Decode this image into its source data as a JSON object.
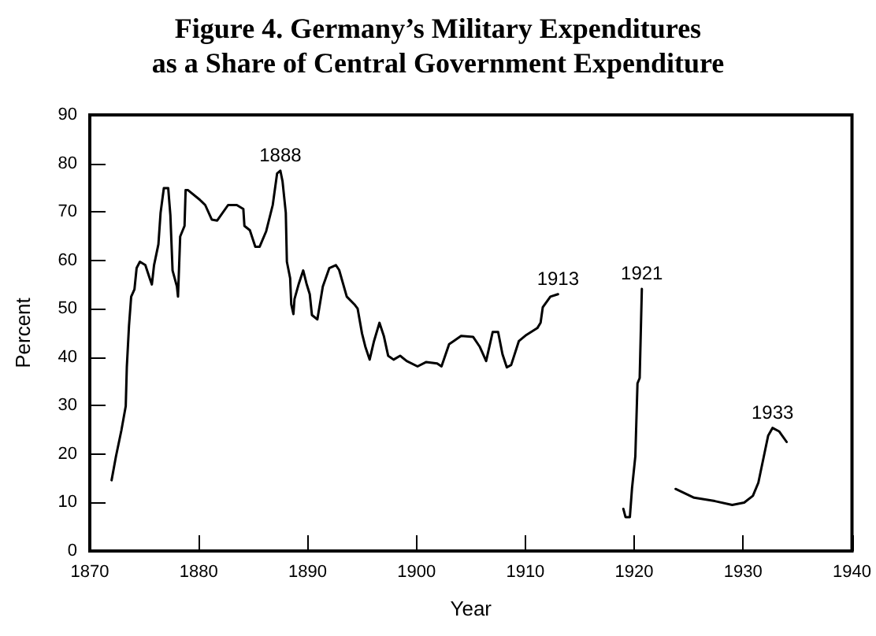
{
  "chart_data": {
    "type": "line",
    "title": "Figure 4. Germany’s Military Expenditures\nas a Share of Central Government Expenditure",
    "xlabel": "Year",
    "ylabel": "Percent",
    "series": [
      {
        "color": "#000000",
        "x": [
          1872.0,
          1872.4,
          1872.9,
          1873.3,
          1873.4,
          1873.6,
          1873.8,
          1874.1,
          1874.3,
          1874.6,
          1875.1,
          1875.5,
          1875.7,
          1875.9,
          1876.3,
          1876.5,
          1876.8,
          1877.2,
          1877.4,
          1877.6,
          1878.0,
          1878.1,
          1878.3,
          1878.7,
          1878.8,
          1879.0,
          1880.1,
          1880.6,
          1881.2,
          1881.7,
          1882.7,
          1883.5,
          1884.1,
          1884.2,
          1884.7,
          1885.2,
          1885.6,
          1886.2,
          1886.8,
          1887.2,
          1887.5,
          1887.7,
          1888.0,
          1888.1,
          1888.4,
          1888.5,
          1888.7,
          1888.8,
          1889.2,
          1889.6,
          1889.9,
          1890.2,
          1890.4,
          1890.9,
          1891.4,
          1892.0,
          1892.6,
          1892.9,
          1893.6,
          1894.3,
          1894.6,
          1895.0,
          1895.3,
          1895.7,
          1896.1,
          1896.6,
          1897.0,
          1897.4,
          1897.9,
          1898.5,
          1899.1,
          1900.1,
          1900.9,
          1901.9,
          1902.3,
          1903.0,
          1903.4,
          1904.1,
          1905.2,
          1905.8,
          1906.4,
          1907.0,
          1907.5,
          1907.9,
          1908.3,
          1908.7,
          1909.4,
          1910.1,
          1911.1,
          1911.4,
          1911.6,
          1912.3,
          1913.0,
          1916.0,
          1919.0,
          1919.2,
          1919.6,
          1919.8,
          1920.1,
          1920.3,
          1920.5,
          1920.7,
          1922.0,
          1923.8,
          1925.5,
          1927.4,
          1929.0,
          1930.1,
          1930.9,
          1931.4,
          1931.9,
          1932.3,
          1932.7,
          1933.3,
          1934.0
        ],
        "values": [
          14.6,
          19.5,
          24.9,
          29.9,
          38,
          46.5,
          52.5,
          54,
          58.4,
          59.7,
          59,
          56.3,
          55,
          59,
          63.3,
          69.8,
          74.9,
          74.9,
          69.3,
          57.9,
          54.6,
          52.5,
          64.9,
          67.1,
          74.5,
          74.5,
          72.5,
          71.4,
          68.4,
          68.2,
          71.4,
          71.4,
          70.6,
          67.1,
          66.2,
          62.8,
          62.8,
          66,
          71.4,
          77.9,
          78.5,
          76.3,
          69.8,
          59.7,
          56.3,
          50.9,
          48.9,
          52,
          55.2,
          57.9,
          55.2,
          53,
          48.7,
          47.8,
          54.6,
          58.4,
          59,
          58,
          52.5,
          50.9,
          50,
          44.9,
          42.2,
          39.5,
          43.3,
          47.1,
          44.4,
          40.3,
          39.5,
          40.3,
          39.2,
          38.1,
          39,
          38.7,
          38.1,
          42.7,
          43.3,
          44.4,
          44.2,
          42.2,
          39.2,
          45.2,
          45.2,
          40.6,
          37.9,
          38.4,
          43.3,
          44.6,
          46,
          47.1,
          50.3,
          52.5,
          53,
          null,
          8.7,
          7,
          7,
          13,
          19.5,
          34.6,
          35.7,
          54.1,
          null,
          12.8,
          11,
          10.3,
          9.5,
          10,
          11.4,
          14.1,
          19.5,
          23.8,
          25.4,
          24.7,
          22.5
        ]
      }
    ],
    "annotations": [
      {
        "text": "1888",
        "x": 1887.5,
        "y": 78.5
      },
      {
        "text": "1913",
        "x": 1913.0,
        "y": 53
      },
      {
        "text": "1921",
        "x": 1920.7,
        "y": 54.1
      },
      {
        "text": "1933",
        "x": 1932.7,
        "y": 25.4
      }
    ],
    "xlim": [
      1870,
      1940
    ],
    "xticks": [
      1870,
      1880,
      1890,
      1900,
      1910,
      1920,
      1930,
      1940
    ],
    "ylim": [
      0,
      90
    ],
    "yticks": [
      0,
      10,
      20,
      30,
      40,
      50,
      60,
      70,
      80,
      90
    ],
    "marker": "none",
    "line_style": "solid"
  }
}
